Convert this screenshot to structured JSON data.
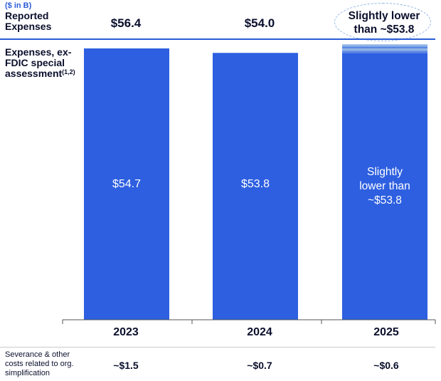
{
  "header": {
    "unit_note": "($ in B)",
    "reported_label_line1": "Reported",
    "reported_label_line2": "Expenses",
    "exfdic_label_line1": "Expenses, ex-",
    "exfdic_label_line2": "FDIC special",
    "exfdic_label_line3": "assessment",
    "exfdic_footnote": "(1,2)"
  },
  "reported": {
    "values": [
      "$56.4",
      "$54.0"
    ],
    "note_line1": "Slightly lower",
    "note_line2": "than ~$53.8"
  },
  "severance": {
    "label_line1": "Severance & other",
    "label_line2": "costs related to org.",
    "label_line3": "simplification",
    "values": [
      "~$1.5",
      "~$0.7",
      "~$0.6"
    ]
  },
  "colors": {
    "bar": "#2d5fe0",
    "accent": "#2a5bd7",
    "note_ellipse": "#8fb3e6",
    "stripe_light": "#8fb3e6",
    "stripe_mid": "#5b86e4"
  },
  "chart_data": {
    "type": "bar",
    "categories": [
      "2023",
      "2024",
      "2025"
    ],
    "values": [
      54.7,
      53.8,
      53.8
    ],
    "data_labels": [
      "$54.7",
      "$53.8",
      ""
    ],
    "label_2025_line1": "Slightly",
    "label_2025_line2": "lower than",
    "label_2025_line3": "~$53.8",
    "title": "",
    "xlabel": "",
    "ylabel": "",
    "ylim": [
      0,
      54.7
    ],
    "grid": false,
    "legend": "none"
  }
}
